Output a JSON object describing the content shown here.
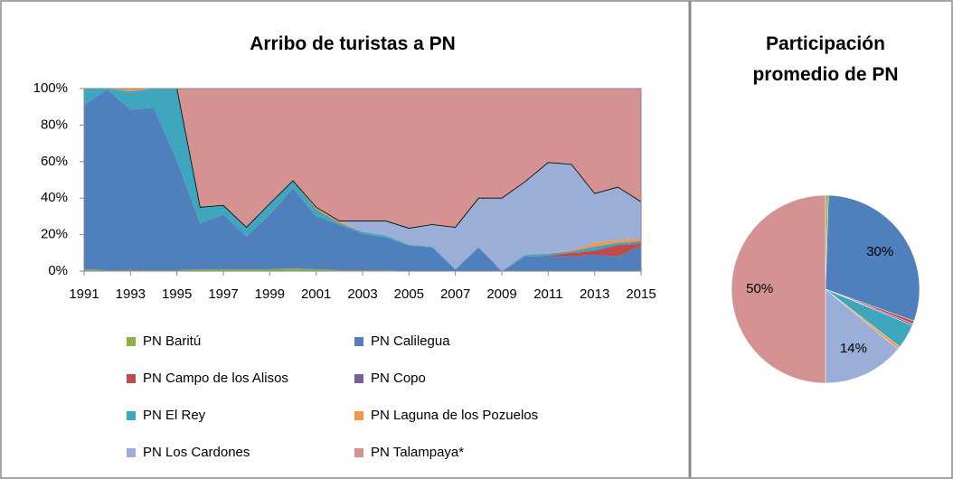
{
  "chart_data": [
    {
      "type": "area",
      "title": "Arribo de turistas a PN",
      "x": [
        1991,
        1992,
        1993,
        1994,
        1995,
        1996,
        1997,
        1998,
        1999,
        2000,
        2001,
        2002,
        2003,
        2004,
        2005,
        2006,
        2007,
        2008,
        2009,
        2010,
        2011,
        2012,
        2013,
        2014,
        2015
      ],
      "xlim": [
        1991,
        2015
      ],
      "xticks": [
        1991,
        1993,
        1995,
        1997,
        1999,
        2001,
        2003,
        2005,
        2007,
        2009,
        2011,
        2013,
        2015
      ],
      "ylim": [
        0,
        100
      ],
      "yticks": [
        {
          "value": 0,
          "label": "0%"
        },
        {
          "value": 20,
          "label": "20%"
        },
        {
          "value": 40,
          "label": "40%"
        },
        {
          "value": 60,
          "label": "60%"
        },
        {
          "value": 80,
          "label": "80%"
        },
        {
          "value": 100,
          "label": "100%"
        }
      ],
      "stacked": true,
      "series": [
        {
          "name": "PN Baritú",
          "color": "#8db048",
          "values": [
            1,
            0.5,
            0.5,
            0.5,
            0.5,
            1,
            1,
            1,
            1,
            1.5,
            1,
            0.5,
            0.5,
            0.5,
            0,
            0,
            0,
            0,
            0,
            0,
            0,
            0,
            0,
            0,
            0
          ]
        },
        {
          "name": "PN Calilegua",
          "color": "#4f7fbd",
          "values": [
            90,
            99,
            88,
            89,
            60,
            25,
            30,
            18,
            30,
            44,
            29,
            25,
            20,
            18,
            14,
            13,
            1,
            13,
            0,
            8,
            8,
            8,
            9,
            8,
            14
          ]
        },
        {
          "name": "PN Campo de los Alisos",
          "color": "#be4b48",
          "values": [
            0,
            0,
            0,
            0,
            0,
            0,
            0,
            0,
            0,
            0,
            0,
            0,
            0,
            0,
            0,
            0,
            0,
            0,
            0,
            0,
            0.5,
            2,
            2,
            6,
            1
          ]
        },
        {
          "name": "PN Copo",
          "color": "#7d5fa0",
          "values": [
            0,
            0,
            0,
            0,
            0,
            0,
            0,
            0,
            0,
            0,
            0,
            0,
            0,
            0,
            0,
            0,
            0,
            0,
            0,
            0,
            0,
            0,
            0.5,
            0.5,
            0.5
          ]
        },
        {
          "name": "PN El Rey",
          "color": "#3fa7bd",
          "values": [
            9,
            0.5,
            10,
            10.5,
            39.5,
            9,
            5,
            5,
            6,
            4,
            4,
            1,
            1,
            1,
            0.5,
            0.5,
            0,
            0,
            0,
            1,
            1,
            1,
            2,
            1,
            1
          ]
        },
        {
          "name": "PN Laguna de los Pozuelos",
          "color": "#f79646",
          "values": [
            0,
            0,
            1.5,
            0,
            0,
            0,
            0,
            0,
            0,
            0,
            1,
            1,
            0,
            0,
            0,
            0,
            0,
            0,
            0,
            0,
            0,
            0.5,
            2,
            1.5,
            1.5
          ]
        },
        {
          "name": "PN Los Cardones",
          "color": "#9aaed8",
          "values": [
            0,
            0,
            0,
            0,
            0,
            0,
            0,
            0,
            0,
            0,
            0,
            0,
            6,
            8,
            9,
            12,
            23,
            27,
            40,
            40,
            50,
            47,
            27,
            29,
            20
          ]
        },
        {
          "name": "PN Talampaya*",
          "color": "#d49292",
          "values": [
            0,
            0,
            0,
            0,
            0,
            65,
            64,
            76,
            63,
            50.5,
            65,
            72.5,
            72.5,
            72.5,
            76.5,
            74.5,
            76,
            60,
            60,
            51,
            40.5,
            41.5,
            57.5,
            54,
            62
          ]
        }
      ]
    },
    {
      "type": "pie",
      "title": "Participación promedio de PN",
      "values": [
        0.5,
        30,
        0.5,
        0.3,
        4.2,
        0.5,
        14,
        50
      ],
      "value_labels": [
        null,
        "30%",
        null,
        null,
        null,
        null,
        "14%",
        "50%"
      ],
      "colors": [
        "#8db048",
        "#4f7fbd",
        "#be4b48",
        "#7d5fa0",
        "#3fa7bd",
        "#f79646",
        "#9aaed8",
        "#d49292"
      ]
    }
  ]
}
